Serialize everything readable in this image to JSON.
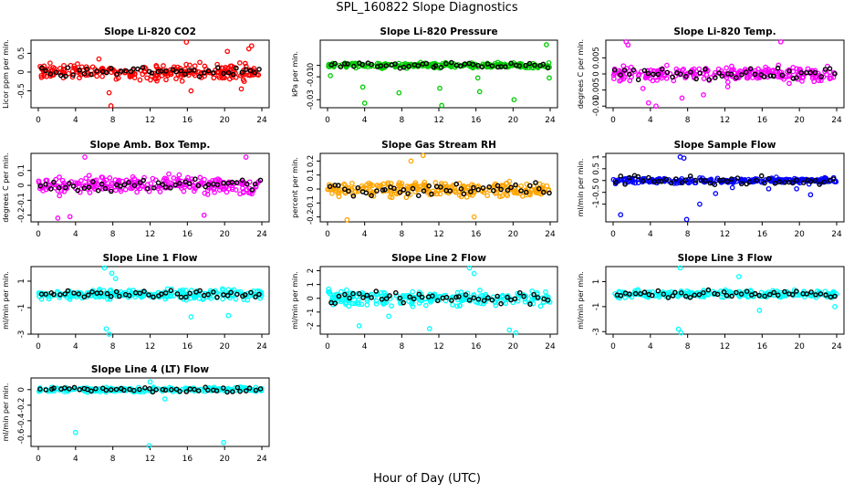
{
  "title": "SPL_160822  Slope Diagnostics",
  "xlabel": "Hour of Day (UTC)",
  "x_ticks": [
    0,
    4,
    8,
    12,
    16,
    20,
    24
  ],
  "chart_data": [
    {
      "type": "scatter",
      "title": "Slope Li-820 CO2",
      "ylabel": "Licor ppm per min.",
      "xlim": [
        0,
        24
      ],
      "ylim": [
        -0.95,
        0.85
      ],
      "yticks": [
        -0.5,
        0,
        0.5
      ],
      "color": "#ff0000",
      "spread": 0.28,
      "sample_spread": 0.14,
      "outliers": [
        [
          0.2,
          0.15
        ],
        [
          6.5,
          0.35
        ],
        [
          7.8,
          -0.9
        ],
        [
          7.6,
          -0.55
        ],
        [
          15.9,
          0.8
        ],
        [
          16.4,
          -0.5
        ],
        [
          21.8,
          -0.45
        ],
        [
          22.6,
          0.62
        ],
        [
          22.9,
          0.7
        ],
        [
          20.3,
          0.55
        ]
      ]
    },
    {
      "type": "scatter",
      "title": "Slope Li-820 Pressure",
      "ylabel": "kPa per min.",
      "xlim": [
        0,
        24
      ],
      "ylim": [
        -0.037,
        0.022
      ],
      "yticks": [
        -0.03,
        -0.01,
        0.0
      ],
      "color": "#00cc00",
      "spread": 0.003,
      "sample_spread": 0.003,
      "outliers": [
        [
          0.3,
          -0.009
        ],
        [
          3.8,
          -0.019
        ],
        [
          4.0,
          -0.033
        ],
        [
          7.7,
          -0.024
        ],
        [
          12.1,
          -0.02
        ],
        [
          12.3,
          -0.035
        ],
        [
          16.2,
          -0.011
        ],
        [
          16.4,
          -0.023
        ],
        [
          20.1,
          -0.03
        ],
        [
          23.9,
          -0.011
        ],
        [
          23.6,
          0.018
        ]
      ]
    },
    {
      "type": "scatter",
      "title": "Slope Li-820 Temp.",
      "ylabel": "degrees C per min.",
      "xlim": [
        0,
        24
      ],
      "ylim": [
        -0.0105,
        0.0105
      ],
      "yticks": [
        -0.01,
        -0.005,
        0.0,
        0.005
      ],
      "color": "#ff00ff",
      "spread": 0.0032,
      "sample_spread": 0.0022,
      "outliers": [
        [
          1.4,
          0.01
        ],
        [
          1.6,
          0.009
        ],
        [
          3.2,
          -0.0045
        ],
        [
          3.8,
          -0.009
        ],
        [
          4.6,
          -0.01
        ],
        [
          7.4,
          -0.0075
        ],
        [
          9.7,
          -0.0065
        ],
        [
          18.0,
          0.01
        ],
        [
          12.3,
          -0.004
        ]
      ]
    },
    {
      "type": "scatter",
      "title": "Slope Amb. Box Temp.",
      "ylabel": "degrees C per min.",
      "xlim": [
        0,
        24
      ],
      "ylim": [
        -0.245,
        0.215
      ],
      "yticks": [
        -0.2,
        -0.1,
        0.0,
        0.1
      ],
      "color": "#ff00ff",
      "spread": 0.085,
      "sample_spread": 0.045,
      "outliers": [
        [
          2.1,
          -0.22
        ],
        [
          3.4,
          -0.21
        ],
        [
          17.8,
          -0.2
        ],
        [
          22.3,
          0.19
        ],
        [
          5.0,
          0.19
        ]
      ]
    },
    {
      "type": "scatter",
      "title": "Slope Gas Stream RH",
      "ylabel": "percent per min.",
      "xlim": [
        0,
        24
      ],
      "ylim": [
        -0.235,
        0.255
      ],
      "yticks": [
        -0.2,
        -0.1,
        0.0,
        0.1,
        0.2
      ],
      "color": "#ffa500",
      "spread": 0.075,
      "sample_spread": 0.06,
      "outliers": [
        [
          2.1,
          -0.22
        ],
        [
          10.3,
          0.24
        ],
        [
          15.8,
          -0.2
        ],
        [
          9.0,
          0.2
        ]
      ]
    },
    {
      "type": "scatter",
      "title": "Slope Sample Flow",
      "ylabel": "ml/min per min.",
      "xlim": [
        0,
        24
      ],
      "ylim": [
        -1.75,
        1.15
      ],
      "yticks": [
        -1.0,
        -0.5,
        0.0,
        0.5,
        1.0
      ],
      "color": "#0000ff",
      "spread": 0.17,
      "sample_spread": 0.25,
      "outliers": [
        [
          7.2,
          1.0
        ],
        [
          7.6,
          0.95
        ],
        [
          7.9,
          -1.65
        ],
        [
          0.8,
          -1.45
        ],
        [
          9.3,
          -1.0
        ],
        [
          12.8,
          -0.3
        ],
        [
          16.7,
          -0.35
        ],
        [
          19.7,
          -0.35
        ],
        [
          21.2,
          -0.6
        ],
        [
          11.0,
          -0.55
        ]
      ]
    },
    {
      "type": "scatter",
      "title": "Slope Line 1 Flow",
      "ylabel": "ml/min per min.",
      "xlim": [
        0,
        24
      ],
      "ylim": [
        -3.0,
        2.1
      ],
      "yticks": [
        -3,
        -1,
        1
      ],
      "color": "#00ffff",
      "spread": 0.55,
      "sample_spread": 0.35,
      "outliers": [
        [
          7.1,
          2.0
        ],
        [
          7.3,
          -2.6
        ],
        [
          7.6,
          -3.0
        ],
        [
          7.9,
          1.6
        ],
        [
          8.3,
          1.2
        ],
        [
          16.4,
          -1.7
        ],
        [
          20.4,
          -1.6
        ]
      ]
    },
    {
      "type": "scatter",
      "title": "Slope Line 2 Flow",
      "ylabel": "ml/min per min.",
      "xlim": [
        0,
        24
      ],
      "ylim": [
        -2.6,
        2.3
      ],
      "yticks": [
        -2,
        -1,
        0,
        1,
        2
      ],
      "color": "#00ffff",
      "spread": 0.85,
      "sample_spread": 0.55,
      "outliers": [
        [
          15.3,
          2.2
        ],
        [
          15.8,
          1.8
        ],
        [
          11.0,
          -2.2
        ],
        [
          19.6,
          -2.3
        ],
        [
          20.3,
          -2.5
        ],
        [
          6.6,
          -1.3
        ],
        [
          3.4,
          -2.0
        ]
      ]
    },
    {
      "type": "scatter",
      "title": "Slope Line 3 Flow",
      "ylabel": "ml/min per min.",
      "xlim": [
        0,
        24
      ],
      "ylim": [
        -3.2,
        2.2
      ],
      "yticks": [
        -3,
        -1,
        1
      ],
      "color": "#00ffff",
      "spread": 0.4,
      "sample_spread": 0.35,
      "outliers": [
        [
          7.2,
          2.1
        ],
        [
          7.0,
          -2.8
        ],
        [
          7.3,
          -3.1
        ],
        [
          15.7,
          -1.3
        ],
        [
          23.8,
          -1.0
        ],
        [
          13.5,
          1.4
        ]
      ]
    },
    {
      "type": "scatter",
      "title": "Slope Line 4 (LT) Flow",
      "ylabel": "ml/min per min.",
      "xlim": [
        0,
        24
      ],
      "ylim": [
        -0.73,
        0.15
      ],
      "yticks": [
        -0.6,
        -0.4,
        -0.2,
        0.0
      ],
      "color": "#00ffff",
      "spread": 0.04,
      "sample_spread": 0.04,
      "outliers": [
        [
          4.0,
          -0.55
        ],
        [
          11.9,
          -0.72
        ],
        [
          19.9,
          -0.68
        ],
        [
          13.6,
          -0.12
        ],
        [
          12.0,
          0.1
        ]
      ]
    }
  ]
}
